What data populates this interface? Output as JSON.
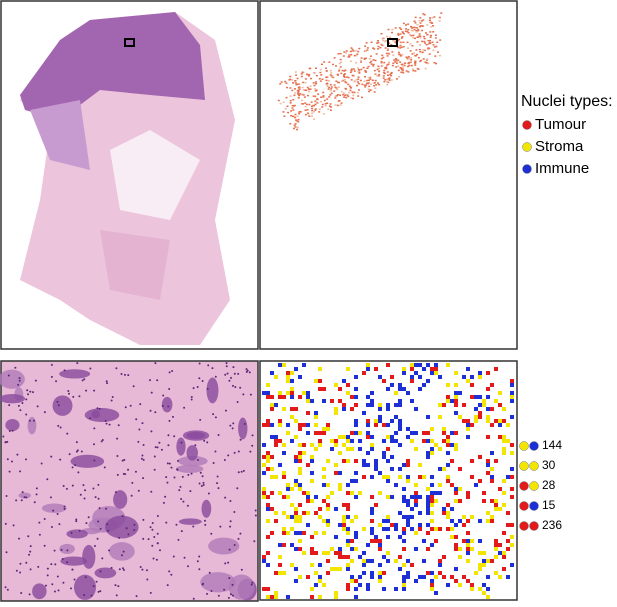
{
  "legend": {
    "title": "Nuclei types:",
    "items": [
      {
        "label": "Tumour",
        "color": "#e31a1c"
      },
      {
        "label": "Stroma",
        "color": "#f2e600"
      },
      {
        "label": "Immune",
        "color": "#1f2fd6"
      }
    ]
  },
  "pairs": [
    {
      "colors": [
        "#f2e600",
        "#1f2fd6"
      ],
      "count": 144
    },
    {
      "colors": [
        "#f2e600",
        "#f2e600"
      ],
      "count": 30
    },
    {
      "colors": [
        "#e31a1c",
        "#f2e600"
      ],
      "count": 28
    },
    {
      "colors": [
        "#e31a1c",
        "#1f2fd6"
      ],
      "count": 15
    },
    {
      "colors": [
        "#e31a1c",
        "#e31a1c"
      ],
      "count": 236
    }
  ]
}
